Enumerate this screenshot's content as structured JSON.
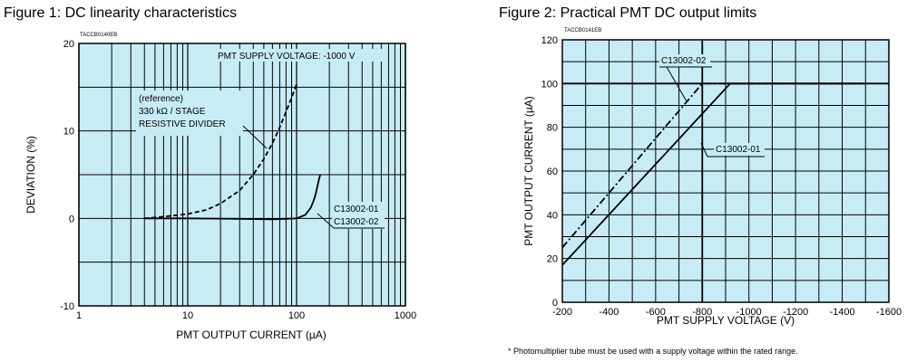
{
  "chart_data": [
    {
      "type": "line",
      "title": "Figure 1: DC linearity characteristics",
      "code": "TACCB0140EB",
      "xlabel": "PMT OUTPUT CURRENT (µA)",
      "ylabel": "DEVIATION (%)",
      "x_scale": "log",
      "xlim": [
        1,
        1000
      ],
      "ylim": [
        -10,
        20
      ],
      "x_ticks": [
        1,
        10,
        100,
        1000
      ],
      "x_tick_labels": [
        "1",
        "10",
        "100",
        "1000"
      ],
      "y_ticks": [
        -10,
        0,
        10,
        20
      ],
      "y_tick_labels": [
        "-10",
        "0",
        "10",
        "20"
      ],
      "grid": true,
      "background": "#c8ecf6",
      "annotations": {
        "supply": "PMT SUPPLY VOLTAGE: -1000 V",
        "ref_1": "(reference)",
        "ref_2": "330 kΩ / STAGE",
        "ref_3": "RESISTIVE DIVIDER",
        "lab_1": "C13002-01",
        "lab_2": "C13002-02"
      },
      "series": [
        {
          "name": "(reference) 330 kΩ / STAGE RESISTIVE DIVIDER",
          "style": "dashed",
          "x": [
            4,
            6,
            10,
            15,
            20,
            30,
            40,
            50,
            60,
            70,
            80,
            90,
            100
          ],
          "y": [
            0,
            0.2,
            0.5,
            1,
            1.7,
            3.2,
            5,
            6.8,
            8.6,
            10.4,
            12.2,
            13.8,
            15.3
          ]
        },
        {
          "name": "C13002-01 / C13002-02",
          "style": "solid",
          "x": [
            4,
            10,
            30,
            60,
            100,
            120,
            135,
            145,
            150,
            155,
            160,
            165
          ],
          "y": [
            0,
            0,
            -0.05,
            -0.1,
            0,
            0.4,
            1.2,
            2.2,
            2.8,
            3.6,
            4.4,
            5
          ]
        }
      ]
    },
    {
      "type": "line",
      "title": "Figure 2: Practical PMT DC output limits",
      "code": "TACCB0141EB",
      "xlabel": "PMT SUPPLY VOLTAGE (V)",
      "ylabel": "PMT OUTPUT CURRENT (µA)",
      "xlim": [
        -200,
        -1600
      ],
      "ylim": [
        0,
        120
      ],
      "x_ticks": [
        -200,
        -400,
        -600,
        -800,
        -1000,
        -1200,
        -1400,
        -1600
      ],
      "x_tick_labels": [
        "-200",
        "-400",
        "-600",
        "-800",
        "-1000",
        "-1200",
        "-1400",
        "-1600"
      ],
      "y_ticks": [
        0,
        20,
        40,
        60,
        80,
        100,
        120
      ],
      "y_tick_labels": [
        "0",
        "20",
        "40",
        "60",
        "80",
        "100",
        "120"
      ],
      "grid": true,
      "background": "#c8ecf6",
      "annotations": {
        "lab_1": "C13002-02",
        "lab_2": "C13002-01"
      },
      "series": [
        {
          "name": "C13002-02",
          "style": "dashdot",
          "x": [
            -200,
            -800,
            -1500
          ],
          "y": [
            25,
            100,
            100
          ]
        },
        {
          "name": "C13002-01",
          "style": "solid",
          "x": [
            -200,
            -920,
            -1500
          ],
          "y": [
            17,
            100,
            100
          ]
        }
      ]
    }
  ],
  "footnote": "* Photomultiplier tube must be used with a supply voltage within the rated range."
}
